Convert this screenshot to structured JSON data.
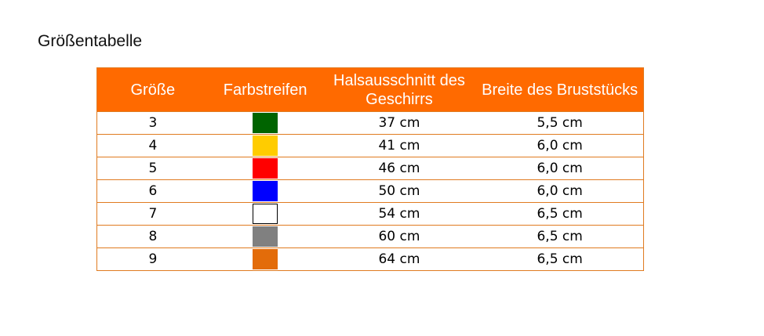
{
  "title": "Größentabelle",
  "headers": [
    "Größe",
    "Farbstreifen",
    "Halsausschnitt des Geschirrs",
    "Breite des Bruststücks"
  ],
  "rows": [
    {
      "size": "3",
      "color": "#006400",
      "neck": "37 cm",
      "chest": "5,5 cm"
    },
    {
      "size": "4",
      "color": "#ffcc00",
      "neck": "41 cm",
      "chest": "6,0 cm"
    },
    {
      "size": "5",
      "color": "#ff0000",
      "neck": "46 cm",
      "chest": "6,0 cm"
    },
    {
      "size": "6",
      "color": "#0000ff",
      "neck": "50 cm",
      "chest": "6,0 cm"
    },
    {
      "size": "7",
      "color": "#ffffff",
      "neck": "54 cm",
      "chest": "6,5 cm"
    },
    {
      "size": "8",
      "color": "#808080",
      "neck": "60 cm",
      "chest": "6,5 cm"
    },
    {
      "size": "9",
      "color": "#e36c0a",
      "neck": "64 cm",
      "chest": "6,5 cm"
    }
  ]
}
